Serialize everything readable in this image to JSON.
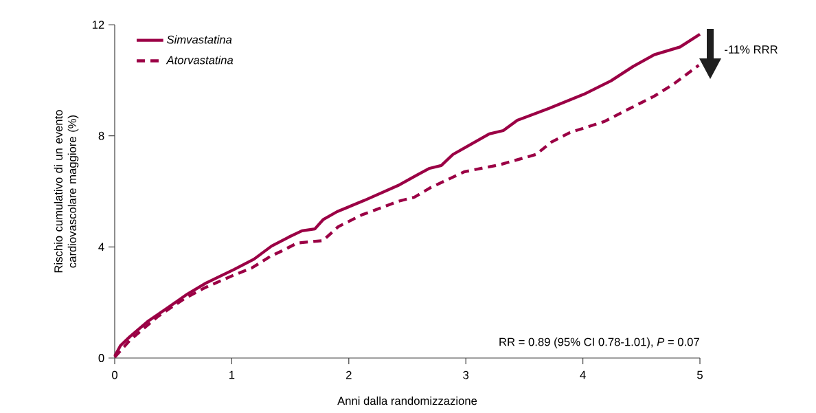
{
  "chart_data": {
    "type": "line",
    "xlabel": "Anni dalla randomizzazione",
    "ylabel": "Rischio cumulativo di un evento cardiovascolare maggiore (%)",
    "xlim": [
      0,
      5
    ],
    "ylim": [
      0,
      12
    ],
    "xticks": [
      0,
      1,
      2,
      3,
      4,
      5
    ],
    "yticks": [
      0,
      4,
      8,
      12
    ],
    "legend": "top left",
    "grid": false,
    "marker": "none",
    "annotations": [
      "RR = 0.89 (95% CI 0.78-1.01), *P* = 0.07",
      "-11% RRR"
    ],
    "series": [
      {
        "name": "Simvastatina",
        "color": "#9b0045",
        "line_style": "solid",
        "x": [
          0.0,
          0.05,
          0.13,
          0.28,
          0.46,
          0.62,
          0.78,
          1.02,
          1.19,
          1.34,
          1.49,
          1.6,
          1.71,
          1.78,
          1.9,
          2.13,
          2.42,
          2.6,
          2.69,
          2.79,
          2.89,
          2.99,
          3.2,
          3.32,
          3.44,
          3.71,
          4.01,
          4.24,
          4.43,
          4.61,
          4.83,
          5.0
        ],
        "values": [
          0.07,
          0.45,
          0.77,
          1.31,
          1.83,
          2.3,
          2.7,
          3.19,
          3.56,
          4.03,
          4.36,
          4.58,
          4.65,
          4.98,
          5.27,
          5.67,
          6.21,
          6.63,
          6.83,
          6.93,
          7.33,
          7.57,
          8.07,
          8.19,
          8.56,
          8.99,
          9.5,
          9.98,
          10.5,
          10.92,
          11.2,
          11.66
        ]
      },
      {
        "name": "Atorvastatina",
        "color": "#9b0045",
        "line_style": "dashed",
        "x": [
          0.0,
          0.13,
          0.37,
          0.6,
          0.78,
          1.02,
          1.17,
          1.33,
          1.43,
          1.56,
          1.78,
          1.91,
          2.11,
          2.42,
          2.56,
          2.7,
          2.99,
          3.29,
          3.6,
          3.73,
          3.89,
          4.18,
          4.38,
          4.61,
          4.77,
          4.99
        ],
        "values": [
          0.03,
          0.64,
          1.5,
          2.15,
          2.55,
          2.99,
          3.24,
          3.66,
          3.86,
          4.14,
          4.23,
          4.73,
          5.15,
          5.64,
          5.79,
          6.14,
          6.71,
          6.96,
          7.33,
          7.77,
          8.12,
          8.51,
          8.94,
          9.43,
          9.85,
          10.54
        ]
      }
    ]
  }
}
